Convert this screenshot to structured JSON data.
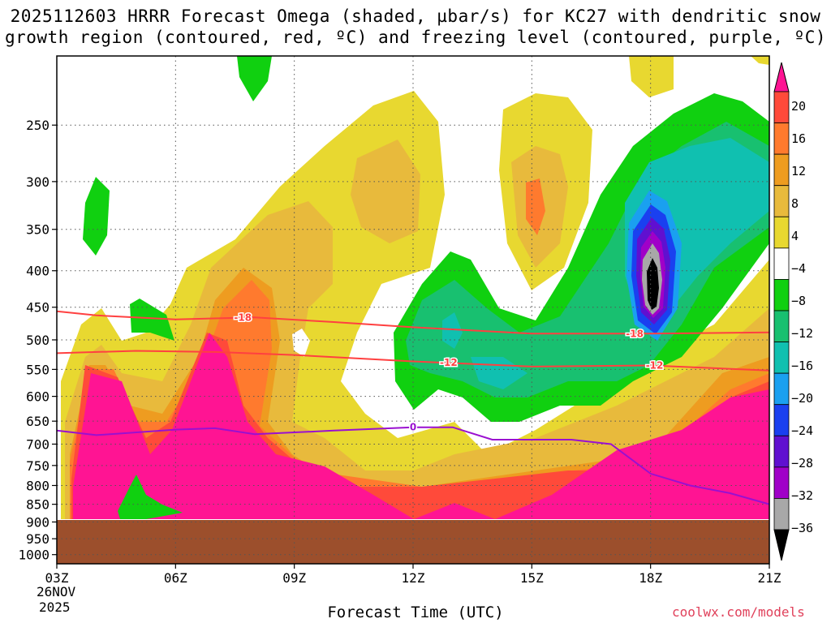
{
  "chart_data": {
    "type": "heatmap",
    "title_line1": "2025112603 HRRR Forecast Omega (shaded, µbar/s) for KC27 with dendritic snow",
    "title_line2": "growth region (contoured, red, ºC) and freezing level (contoured, purple, ºC)",
    "xlabel": "Forecast Time (UTC)",
    "ylabel": "",
    "x_ticks": [
      "03Z",
      "06Z",
      "09Z",
      "12Z",
      "15Z",
      "18Z",
      "21Z"
    ],
    "x_hours": [
      3,
      6,
      9,
      12,
      15,
      18,
      21
    ],
    "date_label": "26NOV",
    "year_label": "2025",
    "y_ticks": [
      250,
      300,
      350,
      400,
      450,
      500,
      550,
      600,
      650,
      700,
      750,
      800,
      850,
      900,
      950,
      1000
    ],
    "y_scale": "log-pressure",
    "ylim": [
      1030,
      200
    ],
    "grid": true,
    "colorbar": {
      "labels": [
        "20",
        "16",
        "12",
        "8",
        "4",
        "−4",
        "−8",
        "−12",
        "−16",
        "−20",
        "−24",
        "−28",
        "−32",
        "−36"
      ],
      "colors": [
        "#ff1493",
        "#ff4a3a",
        "#ff7a2e",
        "#ee9c20",
        "#e8ba3c",
        "#e8d830",
        "#ffffff",
        "#10d010",
        "#18c070",
        "#10c0b0",
        "#1aa0f0",
        "#1a40f0",
        "#6010d0",
        "#a000c8",
        "#a8a8a8",
        "#000000"
      ]
    },
    "contours": [
      {
        "color": "#ff4040",
        "label": "-18",
        "points": [
          [
            3,
            456
          ],
          [
            4,
            462
          ],
          [
            6,
            468
          ],
          [
            8,
            465
          ],
          [
            10,
            472
          ],
          [
            12,
            480
          ],
          [
            15,
            490
          ],
          [
            18,
            490
          ],
          [
            21,
            488
          ]
        ]
      },
      {
        "color": "#ff4040",
        "label": "-12",
        "points": [
          [
            3,
            522
          ],
          [
            5,
            518
          ],
          [
            7,
            520
          ],
          [
            9,
            525
          ],
          [
            12,
            536
          ],
          [
            15,
            545
          ],
          [
            18,
            543
          ],
          [
            21,
            552
          ]
        ]
      },
      {
        "color": "#9a10d0",
        "label": "0",
        "points": [
          [
            3,
            670
          ],
          [
            4,
            680
          ],
          [
            6,
            668
          ],
          [
            7,
            665
          ],
          [
            8,
            678
          ],
          [
            10,
            670
          ],
          [
            12,
            663
          ],
          [
            13,
            663
          ],
          [
            14,
            690
          ],
          [
            16,
            690
          ],
          [
            17,
            700
          ],
          [
            18,
            770
          ],
          [
            19,
            800
          ],
          [
            20,
            820
          ],
          [
            21,
            850
          ]
        ]
      }
    ],
    "contour_labels": [
      {
        "text": "-18",
        "x": 7.7,
        "p": 465,
        "color": "#ff4040"
      },
      {
        "text": "-18",
        "x": 17.6,
        "p": 490,
        "color": "#ff4040"
      },
      {
        "text": "-12",
        "x": 12.9,
        "p": 538,
        "color": "#ff4040"
      },
      {
        "text": "-12",
        "x": 18.1,
        "p": 543,
        "color": "#ff4040"
      },
      {
        "text": "0",
        "x": 12.0,
        "p": 663,
        "color": "#9a10d0"
      }
    ],
    "ground_level_hpa": 920
  },
  "credit": "coolwx.com/models"
}
